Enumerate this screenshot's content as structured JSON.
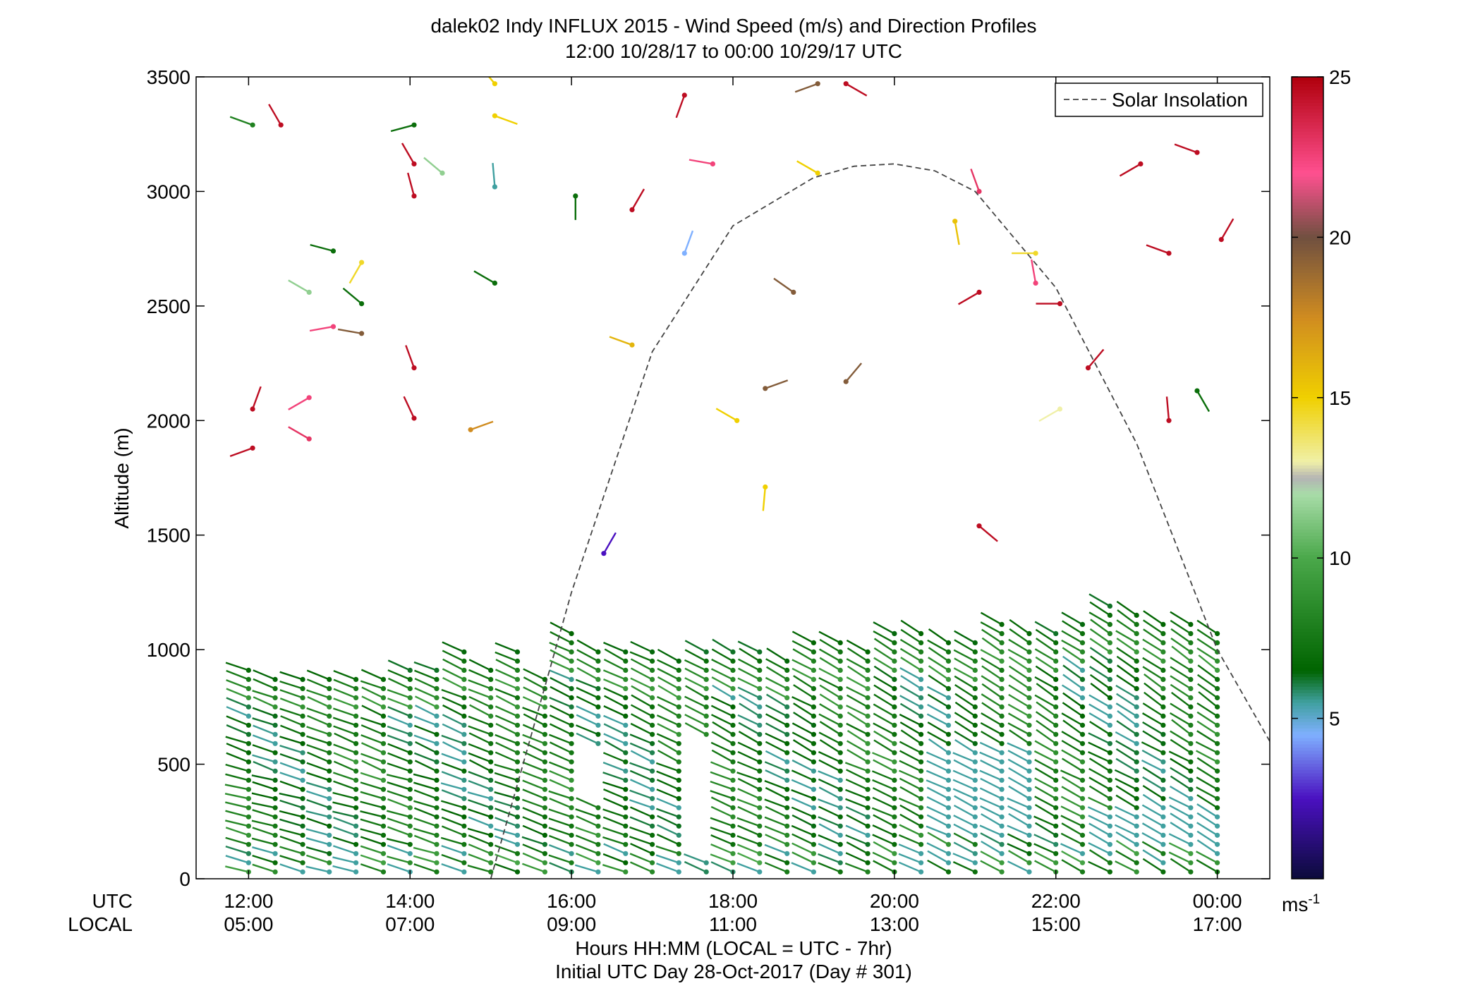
{
  "chart_data": {
    "type": "scatter",
    "title": "dalek02 Indy INFLUX 2015 - Wind Speed (m/s) and Direction Profiles",
    "subtitle": "12:00 10/28/17 to 00:00 10/29/17  UTC",
    "ylabel": "Altitude (m)",
    "xlabel_line1": "Hours HH:MM  (LOCAL = UTC - 7hr)",
    "xlabel_line2": "Initial UTC Day 28-Oct-2017 (Day # 301)",
    "row_label_utc": "UTC",
    "row_label_local": "LOCAL",
    "xlim": [
      11.35,
      24.65
    ],
    "ylim": [
      0,
      3500
    ],
    "y_ticks": [
      0,
      500,
      1000,
      1500,
      2000,
      2500,
      3000,
      3500
    ],
    "y_tick_labels": [
      "0",
      "500",
      "1000",
      "1500",
      "2000",
      "2500",
      "3000",
      "3500"
    ],
    "x_ticks": [
      12,
      14,
      16,
      18,
      20,
      22,
      24
    ],
    "x_tick_labels_utc": [
      "12:00",
      "14:00",
      "16:00",
      "18:00",
      "20:00",
      "22:00",
      "00:00"
    ],
    "x_tick_labels_local": [
      "05:00",
      "07:00",
      "09:00",
      "11:00",
      "13:00",
      "15:00",
      "17:00"
    ],
    "grid": false,
    "legend": {
      "position": "top-right",
      "entries": [
        {
          "label": "Solar Insolation",
          "style": "dashed",
          "color": "#444444"
        }
      ]
    },
    "colorbar": {
      "min": 0,
      "max": 25,
      "ticks": [
        5,
        10,
        15,
        20,
        25
      ],
      "tick_labels": [
        "5",
        "10",
        "15",
        "20",
        "25"
      ],
      "unit_label": "ms",
      "unit_exponent": "-1",
      "stops": [
        {
          "v": 0,
          "color": "#0b0b3a"
        },
        {
          "v": 2.5,
          "color": "#4a10c0"
        },
        {
          "v": 4.5,
          "color": "#7fb0ff"
        },
        {
          "v": 5.5,
          "color": "#40a0a0"
        },
        {
          "v": 6.5,
          "color": "#006400"
        },
        {
          "v": 10,
          "color": "#4aa84a"
        },
        {
          "v": 12,
          "color": "#a8dca8"
        },
        {
          "v": 12.5,
          "color": "#b4b4b4"
        },
        {
          "v": 13,
          "color": "#f0f0a8"
        },
        {
          "v": 15,
          "color": "#f0d000"
        },
        {
          "v": 17.5,
          "color": "#d08c20"
        },
        {
          "v": 20,
          "color": "#705040"
        },
        {
          "v": 22,
          "color": "#ff5090"
        },
        {
          "v": 25,
          "color": "#b0000c"
        }
      ]
    },
    "solar_insolation": {
      "x": [
        15.0,
        16.0,
        17.0,
        18.0,
        19.0,
        19.5,
        20.0,
        20.5,
        21.0,
        22.0,
        23.0,
        24.0,
        24.65
      ],
      "y": [
        0,
        1250,
        2300,
        2850,
        3060,
        3110,
        3120,
        3090,
        3000,
        2580,
        1900,
        1000,
        600
      ]
    },
    "profile_times": [
      12,
      12.33,
      12.67,
      13,
      13.33,
      13.67,
      14,
      14.33,
      14.67,
      15,
      15.33,
      15.67,
      16,
      16.33,
      16.67,
      17,
      17.33,
      17.67,
      18,
      18.33,
      18.67,
      19,
      19.33,
      19.67,
      20,
      20.33,
      20.67,
      21,
      21.33,
      21.67,
      22,
      22.33,
      22.67,
      23,
      23.33,
      23.67,
      24
    ],
    "profile_tops": [
      940,
      880,
      880,
      890,
      900,
      900,
      910,
      910,
      1000,
      920,
      1000,
      900,
      1090,
      1020,
      1000,
      1000,
      960,
      990,
      990,
      990,
      960,
      1050,
      1050,
      1010,
      1080,
      1090,
      1050,
      1040,
      1140,
      1100,
      1070,
      1120,
      1190,
      1180,
      1130,
      1130,
      1100
    ],
    "profile_spacing_m": 40,
    "gaps": [
      {
        "t_start": 16.1,
        "t_end": 16.6,
        "z_start": 330,
        "z_end": 570
      },
      {
        "t_start": 17.45,
        "t_end": 17.8,
        "z_start": 80,
        "z_end": 600
      }
    ],
    "upper_barbs": [
      {
        "t": 12.05,
        "z": 3290,
        "dir": 290,
        "speed": 8.0
      },
      {
        "t": 12.4,
        "z": 3290,
        "dir": 330,
        "speed": 24.5
      },
      {
        "t": 12.05,
        "z": 2050,
        "dir": 20,
        "speed": 24.5
      },
      {
        "t": 12.05,
        "z": 1880,
        "dir": 250,
        "speed": 24.5
      },
      {
        "t": 12.75,
        "z": 2560,
        "dir": 300,
        "speed": 11.5
      },
      {
        "t": 12.75,
        "z": 2100,
        "dir": 240,
        "speed": 22.5
      },
      {
        "t": 12.75,
        "z": 1920,
        "dir": 300,
        "speed": 23.0
      },
      {
        "t": 13.05,
        "z": 2740,
        "dir": 285,
        "speed": 7.0
      },
      {
        "t": 13.05,
        "z": 2410,
        "dir": 260,
        "speed": 22.5
      },
      {
        "t": 13.4,
        "z": 2690,
        "dir": 210,
        "speed": 14.5
      },
      {
        "t": 13.4,
        "z": 2510,
        "dir": 310,
        "speed": 7.0
      },
      {
        "t": 13.4,
        "z": 2380,
        "dir": 280,
        "speed": 19.5
      },
      {
        "t": 14.05,
        "z": 3290,
        "dir": 255,
        "speed": 7.0
      },
      {
        "t": 14.05,
        "z": 3120,
        "dir": 330,
        "speed": 24.5
      },
      {
        "t": 14.05,
        "z": 2980,
        "dir": 345,
        "speed": 24.5
      },
      {
        "t": 14.05,
        "z": 2230,
        "dir": 340,
        "speed": 24.5
      },
      {
        "t": 14.05,
        "z": 2010,
        "dir": 335,
        "speed": 24.5
      },
      {
        "t": 14.4,
        "z": 3080,
        "dir": 310,
        "speed": 11.5
      },
      {
        "t": 14.75,
        "z": 1960,
        "dir": 70,
        "speed": 17.5
      },
      {
        "t": 15.05,
        "z": 3470,
        "dir": 320,
        "speed": 15.0
      },
      {
        "t": 15.05,
        "z": 3330,
        "dir": 110,
        "speed": 15.0
      },
      {
        "t": 15.05,
        "z": 3020,
        "dir": 355,
        "speed": 5.5
      },
      {
        "t": 15.05,
        "z": 2600,
        "dir": 300,
        "speed": 7.0
      },
      {
        "t": 16.05,
        "z": 2980,
        "dir": 180,
        "speed": 7.0
      },
      {
        "t": 16.4,
        "z": 1420,
        "dir": 30,
        "speed": 2.5
      },
      {
        "t": 16.75,
        "z": 2330,
        "dir": 290,
        "speed": 16.0
      },
      {
        "t": 16.75,
        "z": 2920,
        "dir": 30,
        "speed": 24.5
      },
      {
        "t": 17.4,
        "z": 2730,
        "dir": 20,
        "speed": 4.5
      },
      {
        "t": 17.4,
        "z": 3420,
        "dir": 200,
        "speed": 24.5
      },
      {
        "t": 17.75,
        "z": 3120,
        "dir": 280,
        "speed": 22.5
      },
      {
        "t": 18.05,
        "z": 2000,
        "dir": 300,
        "speed": 15.0
      },
      {
        "t": 18.4,
        "z": 2140,
        "dir": 70,
        "speed": 19.5
      },
      {
        "t": 18.4,
        "z": 1710,
        "dir": 185,
        "speed": 15.0
      },
      {
        "t": 18.75,
        "z": 2560,
        "dir": 305,
        "speed": 19.5
      },
      {
        "t": 19.05,
        "z": 3080,
        "dir": 300,
        "speed": 15.0
      },
      {
        "t": 19.05,
        "z": 3470,
        "dir": 250,
        "speed": 19.5
      },
      {
        "t": 19.4,
        "z": 3470,
        "dir": 120,
        "speed": 24.5
      },
      {
        "t": 19.4,
        "z": 2170,
        "dir": 40,
        "speed": 19.5
      },
      {
        "t": 21.05,
        "z": 3000,
        "dir": 340,
        "speed": 23.0
      },
      {
        "t": 20.75,
        "z": 2870,
        "dir": 170,
        "speed": 15.5
      },
      {
        "t": 21.05,
        "z": 2560,
        "dir": 240,
        "speed": 24.5
      },
      {
        "t": 21.05,
        "z": 1540,
        "dir": 130,
        "speed": 24.5
      },
      {
        "t": 21.75,
        "z": 2730,
        "dir": 270,
        "speed": 14.5
      },
      {
        "t": 21.75,
        "z": 2600,
        "dir": 350,
        "speed": 22.5
      },
      {
        "t": 22.05,
        "z": 2510,
        "dir": 270,
        "speed": 24.5
      },
      {
        "t": 22.05,
        "z": 2050,
        "dir": 240,
        "speed": 13.0
      },
      {
        "t": 22.4,
        "z": 2230,
        "dir": 40,
        "speed": 24.5
      },
      {
        "t": 23.05,
        "z": 3120,
        "dir": 240,
        "speed": 24.5
      },
      {
        "t": 23.4,
        "z": 2730,
        "dir": 290,
        "speed": 24.5
      },
      {
        "t": 23.4,
        "z": 2000,
        "dir": 355,
        "speed": 24.5
      },
      {
        "t": 23.75,
        "z": 3170,
        "dir": 290,
        "speed": 24.5
      },
      {
        "t": 23.75,
        "z": 2130,
        "dir": 150,
        "speed": 7.0
      },
      {
        "t": 24.05,
        "z": 2790,
        "dir": 30,
        "speed": 24.5
      }
    ]
  }
}
